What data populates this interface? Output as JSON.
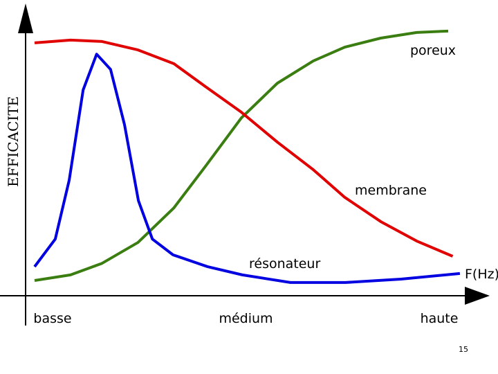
{
  "chart_data": {
    "type": "line",
    "y_label": "EFFICACITE",
    "x_label": "F(Hz)",
    "xlim": [
      0,
      100
    ],
    "ylim": [
      0,
      100
    ],
    "xticks": [
      {
        "value": 6,
        "label": "basse"
      },
      {
        "value": 49,
        "label": "médium"
      },
      {
        "value": 92,
        "label": "haute"
      }
    ],
    "series": [
      {
        "name": "poreux",
        "color": "#3a7d10",
        "x": [
          2,
          10,
          17,
          25,
          33,
          40,
          48,
          56,
          64,
          71,
          79,
          87,
          94
        ],
        "values": [
          5.4,
          7.4,
          11.5,
          18.9,
          31.2,
          45.9,
          63.1,
          75.4,
          83.3,
          88.2,
          91.4,
          93.4,
          93.9
        ]
      },
      {
        "name": "membrane",
        "color": "#e00000",
        "x": [
          2,
          10,
          17,
          25,
          33,
          40,
          48,
          56,
          64,
          71,
          79,
          87,
          95
        ],
        "values": [
          89.7,
          90.7,
          90.2,
          87.2,
          82.3,
          74.2,
          65.1,
          54.5,
          44.7,
          34.9,
          26.3,
          19.4,
          14.0
        ]
      },
      {
        "name": "résonateur",
        "color": "#0000e0",
        "x": [
          2,
          6.6,
          9.7,
          12.8,
          15.8,
          18.9,
          22,
          25.1,
          28.2,
          32.8,
          40.5,
          48.2,
          58.9,
          71.2,
          83.5,
          96.6
        ],
        "values": [
          10.3,
          20.1,
          41,
          73,
          85.7,
          80.3,
          60.7,
          33.7,
          20.1,
          14.5,
          10.3,
          7.4,
          4.7,
          4.7,
          5.9,
          7.9
        ]
      }
    ]
  },
  "page_number": "15"
}
